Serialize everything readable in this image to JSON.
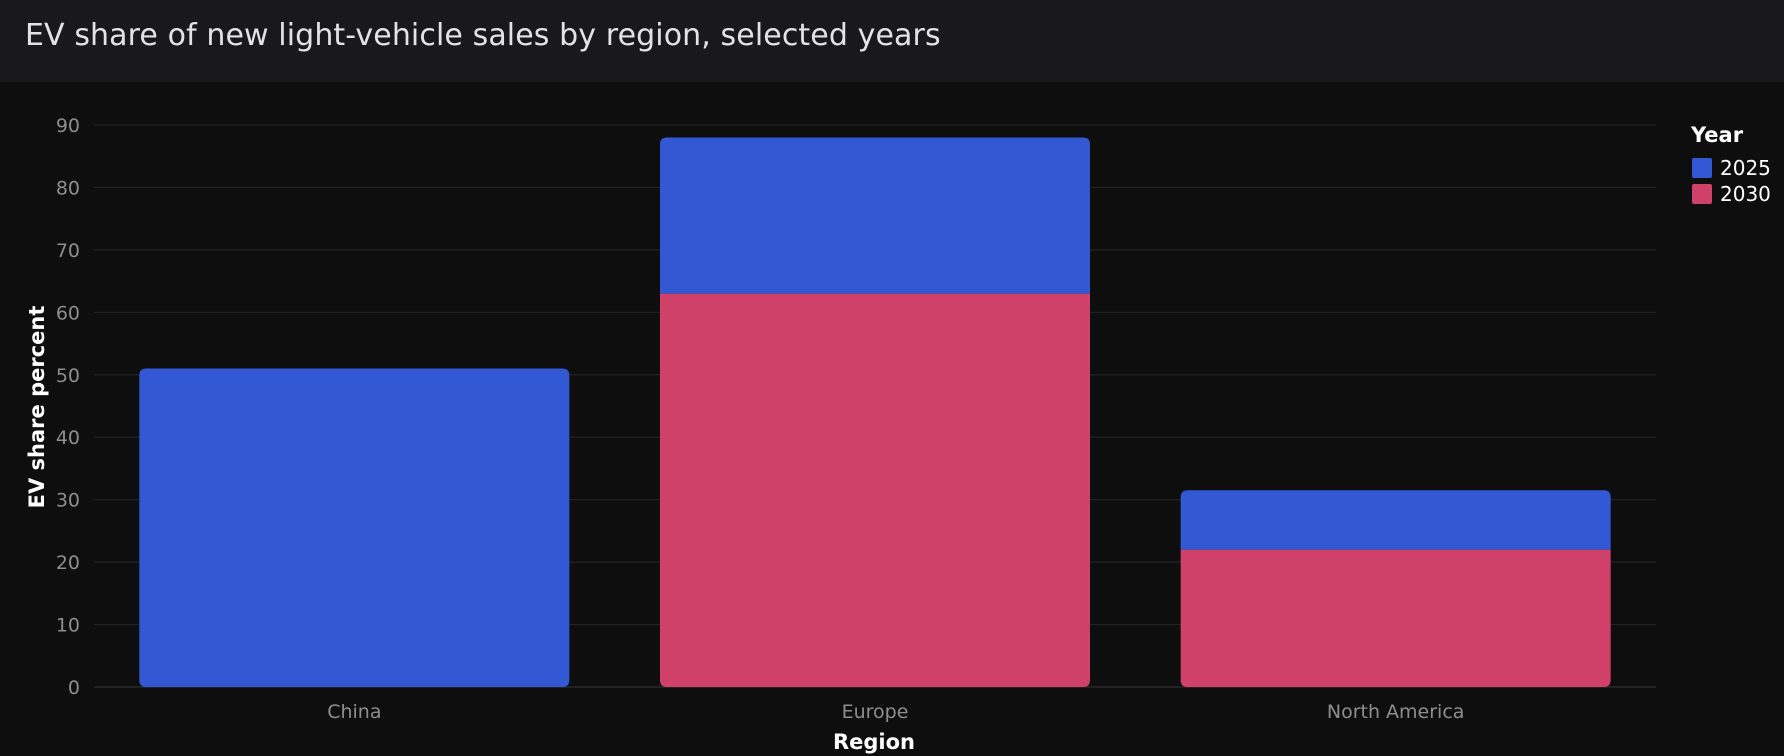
{
  "header": {
    "title": "EV share of new light-vehicle sales by region, selected years"
  },
  "chart_data": {
    "type": "bar",
    "stacked": true,
    "title": "EV share of new light-vehicle sales by region, selected years",
    "xlabel": "Region",
    "ylabel": "EV share percent",
    "categories": [
      "China",
      "Europe",
      "North America"
    ],
    "series": [
      {
        "name": "2030",
        "color": "#d04169",
        "values": [
          0,
          63,
          22
        ]
      },
      {
        "name": "2025",
        "color": "#3358d4",
        "values": [
          51,
          25,
          9.5
        ]
      }
    ],
    "ylim": [
      0,
      90
    ],
    "yticks": [
      0,
      10,
      20,
      30,
      40,
      50,
      60,
      70,
      80,
      90
    ],
    "grid": true,
    "legend": {
      "title": "Year",
      "placement": "top-right",
      "entries": [
        {
          "label": "2025",
          "color": "#3358d4"
        },
        {
          "label": "2030",
          "color": "#d04169"
        }
      ]
    },
    "background": "#0e0e0f",
    "gridColor": "#232325"
  }
}
